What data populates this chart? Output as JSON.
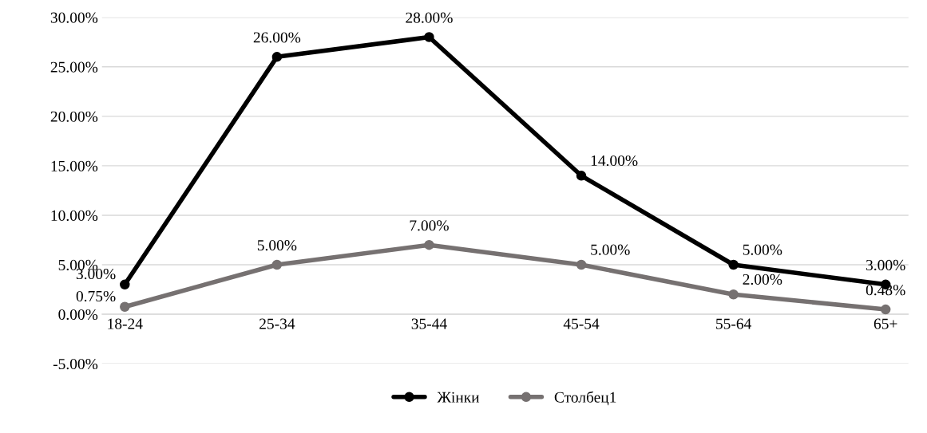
{
  "chart_data": {
    "type": "line",
    "categories": [
      "18-24",
      "25-34",
      "35-44",
      "45-54",
      "55-64",
      "65+"
    ],
    "series": [
      {
        "name": "Жінки",
        "color": "#000000",
        "values": [
          3,
          26,
          28,
          14,
          5,
          3
        ],
        "value_labels": [
          "3.00%",
          "26.00%",
          "28.00%",
          "14.00%",
          "5.00%",
          "3.00%"
        ]
      },
      {
        "name": "Столбец1",
        "color": "#767171",
        "values": [
          0.75,
          5,
          7,
          5,
          2,
          0.48
        ],
        "value_labels": [
          "0.75%",
          "5.00%",
          "7.00%",
          "5.00%",
          "2.00%",
          "0.48%"
        ]
      }
    ],
    "ylim": [
      -5,
      30
    ],
    "yticks": [
      {
        "value": -5,
        "label": "-5.00%"
      },
      {
        "value": 0,
        "label": "0.00%"
      },
      {
        "value": 5,
        "label": "5.00%"
      },
      {
        "value": 10,
        "label": "10.00%"
      },
      {
        "value": 15,
        "label": "15.00%"
      },
      {
        "value": 20,
        "label": "20.00%"
      },
      {
        "value": 25,
        "label": "25.00%"
      },
      {
        "value": 30,
        "label": "30.00%"
      }
    ],
    "grid": "y",
    "legend": "bottom",
    "marker": "circle",
    "line_style": "solid"
  }
}
